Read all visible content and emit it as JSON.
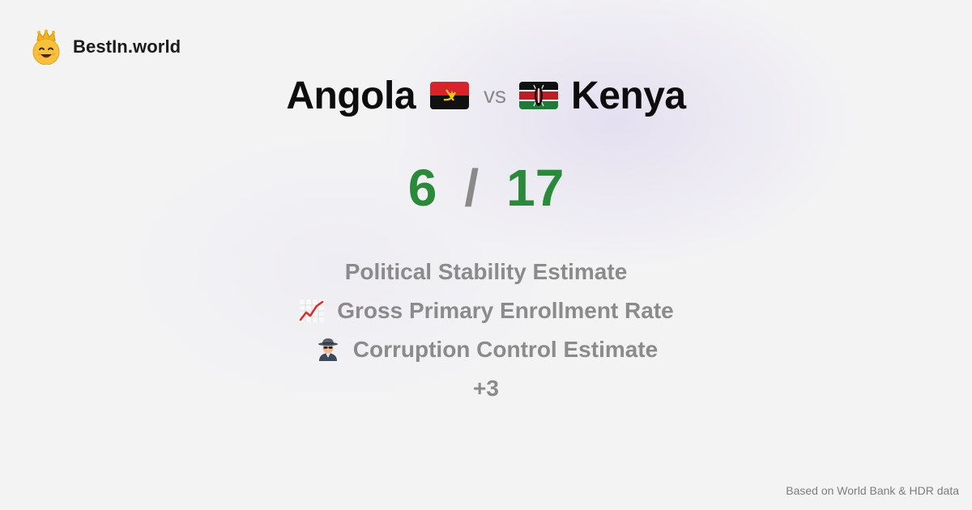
{
  "brand": {
    "name": "BestIn.world",
    "icon": "crowned-smiley-icon"
  },
  "comparison": {
    "left": {
      "name": "Angola",
      "flag": "angola-flag-icon",
      "score": "6"
    },
    "separator": "vs",
    "right": {
      "name": "Kenya",
      "flag": "kenya-flag-icon",
      "score": "17"
    },
    "score_separator": "/"
  },
  "metrics": [
    {
      "label": "Political Stability Estimate",
      "icon": ""
    },
    {
      "label": "Gross Primary Enrollment Rate",
      "icon": "chart-increasing-icon"
    },
    {
      "label": "Corruption Control Estimate",
      "icon": "detective-icon"
    }
  ],
  "more": "+3",
  "footer": "Based on World Bank & HDR data",
  "colors": {
    "score": "#2a8a3a",
    "muted": "#8b8b8b",
    "background": "#f3f3f4"
  }
}
